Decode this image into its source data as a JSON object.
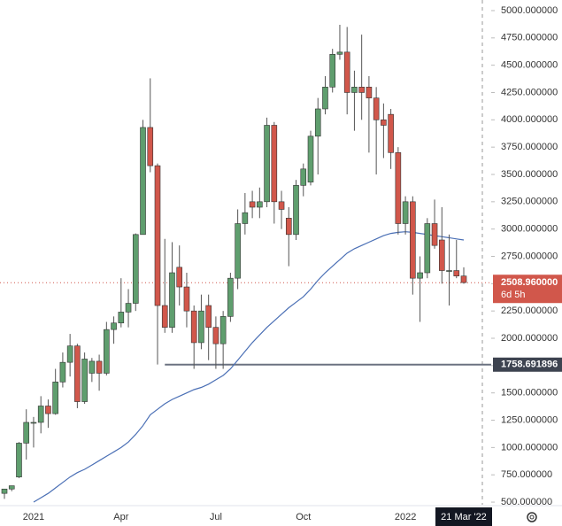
{
  "chart_data": {
    "type": "candlestick",
    "categories": [
      null,
      null,
      null,
      null,
      "2021",
      null,
      null,
      null,
      null,
      null,
      null,
      null,
      null,
      null,
      null,
      null,
      "Apr",
      null,
      null,
      null,
      null,
      null,
      null,
      null,
      null,
      null,
      null,
      null,
      null,
      "Jul",
      null,
      null,
      null,
      null,
      null,
      null,
      null,
      null,
      null,
      null,
      null,
      "Oct",
      null,
      null,
      null,
      null,
      null,
      null,
      null,
      null,
      null,
      null,
      null,
      null,
      null,
      "2022",
      null,
      null,
      null,
      null,
      null,
      null,
      null,
      "21 Mar '22"
    ],
    "open": [
      580,
      620,
      730,
      1040,
      1230,
      1230,
      1380,
      1310,
      1600,
      1780,
      1930,
      1420,
      1680,
      1790,
      1680,
      2080,
      2140,
      2240,
      2320,
      2950,
      3930,
      3580,
      2300,
      2100,
      2650,
      2470,
      2250,
      1960,
      2300,
      2100,
      1950,
      2200,
      2550,
      3050,
      3250,
      3200,
      3250,
      3950,
      3250,
      3100,
      2950,
      3400,
      3430,
      3850,
      4100,
      4300,
      4600,
      4620,
      4250,
      4300,
      4300,
      4200,
      4000,
      4050,
      3700,
      3050,
      3250,
      2550,
      2600,
      3050,
      2900,
      2620,
      2620,
      2570
    ],
    "high": [
      600,
      650,
      1050,
      1350,
      1280,
      1470,
      1440,
      1720,
      1870,
      2040,
      1950,
      1870,
      1820,
      1850,
      2150,
      2200,
      2550,
      2450,
      2960,
      4000,
      4380,
      3600,
      2910,
      2880,
      2850,
      2600,
      2300,
      2400,
      2400,
      2200,
      2250,
      2600,
      3180,
      3330,
      3350,
      3380,
      4020,
      3980,
      3350,
      3200,
      3450,
      3600,
      3900,
      4200,
      4400,
      4650,
      4870,
      4850,
      4450,
      4780,
      4400,
      4300,
      4150,
      4100,
      3750,
      3300,
      3300,
      2750,
      3100,
      3270,
      3200,
      2950,
      2900,
      2650
    ],
    "low": [
      530,
      600,
      720,
      890,
      1000,
      1130,
      1180,
      1300,
      1550,
      1650,
      1360,
      1400,
      1600,
      1520,
      1660,
      1950,
      2100,
      2100,
      2250,
      2950,
      3520,
      1760,
      2050,
      2050,
      2300,
      2100,
      1720,
      1900,
      1800,
      1720,
      1720,
      2150,
      2450,
      2950,
      3100,
      3100,
      3200,
      3050,
      3000,
      2660,
      2900,
      3300,
      3400,
      3500,
      4050,
      4250,
      4550,
      4050,
      3900,
      4000,
      3700,
      3500,
      3650,
      3550,
      2950,
      2950,
      2400,
      2150,
      2550,
      2820,
      2500,
      2300,
      2550,
      2500
    ],
    "close": [
      620,
      650,
      1040,
      1230,
      1230,
      1380,
      1310,
      1600,
      1780,
      1930,
      1420,
      1810,
      1790,
      1680,
      2080,
      2140,
      2240,
      2320,
      2950,
      3930,
      3580,
      2300,
      2100,
      2600,
      2470,
      2250,
      1960,
      2250,
      2100,
      1950,
      2200,
      2550,
      3050,
      3150,
      3200,
      3250,
      3950,
      3250,
      3180,
      2950,
      3400,
      3550,
      3850,
      4100,
      4300,
      4600,
      4620,
      4250,
      4300,
      4250,
      4200,
      4000,
      3950,
      3700,
      3050,
      3250,
      2550,
      2600,
      3050,
      2850,
      2620,
      2620,
      2570,
      2510
    ],
    "ma": {
      "color": "#4a6fb5",
      "values": [
        null,
        null,
        null,
        null,
        500,
        540,
        580,
        630,
        680,
        730,
        770,
        800,
        840,
        880,
        920,
        960,
        1000,
        1050,
        1120,
        1200,
        1300,
        1350,
        1400,
        1440,
        1470,
        1500,
        1530,
        1550,
        1580,
        1620,
        1660,
        1720,
        1800,
        1880,
        1960,
        2030,
        2100,
        2160,
        2220,
        2280,
        2330,
        2380,
        2450,
        2530,
        2600,
        2660,
        2720,
        2780,
        2820,
        2850,
        2880,
        2910,
        2940,
        2960,
        2970,
        2975,
        2970,
        2960,
        2950,
        2940,
        2930,
        2920,
        2910,
        2900
      ]
    },
    "up_color": "#5f9e6e",
    "down_color": "#d1574b",
    "ylim": [
      476,
      5097
    ],
    "yticks": [
      {
        "value": 500,
        "label": "500.000000"
      },
      {
        "value": 750,
        "label": "750.000000"
      },
      {
        "value": 1000,
        "label": "1000.000000"
      },
      {
        "value": 1250,
        "label": "1250.000000"
      },
      {
        "value": 1500,
        "label": "1500.000000"
      },
      {
        "value": 1750,
        "label": "1750.000000"
      },
      {
        "value": 2000,
        "label": "2000.000000"
      },
      {
        "value": 2250,
        "label": "2250.000000"
      },
      {
        "value": 2500,
        "label": "2500.000000"
      },
      {
        "value": 2750,
        "label": "2750.000000"
      },
      {
        "value": 3000,
        "label": "3000.000000"
      },
      {
        "value": 3250,
        "label": "3250.000000"
      },
      {
        "value": 3500,
        "label": "3500.000000"
      },
      {
        "value": 3750,
        "label": "3750.000000"
      },
      {
        "value": 4000,
        "label": "4000.000000"
      },
      {
        "value": 4250,
        "label": "4250.000000"
      },
      {
        "value": 4500,
        "label": "4500.000000"
      },
      {
        "value": 4750,
        "label": "4750.000000"
      },
      {
        "value": 5000,
        "label": "5000.000000"
      }
    ],
    "level": {
      "value": 1758.691896,
      "label": "1758.691896",
      "color": "#6b7280"
    },
    "last_price": {
      "value": 2508.96,
      "label": "2508.960000",
      "countdown": "6d 5h",
      "color": "#d1574b"
    }
  }
}
